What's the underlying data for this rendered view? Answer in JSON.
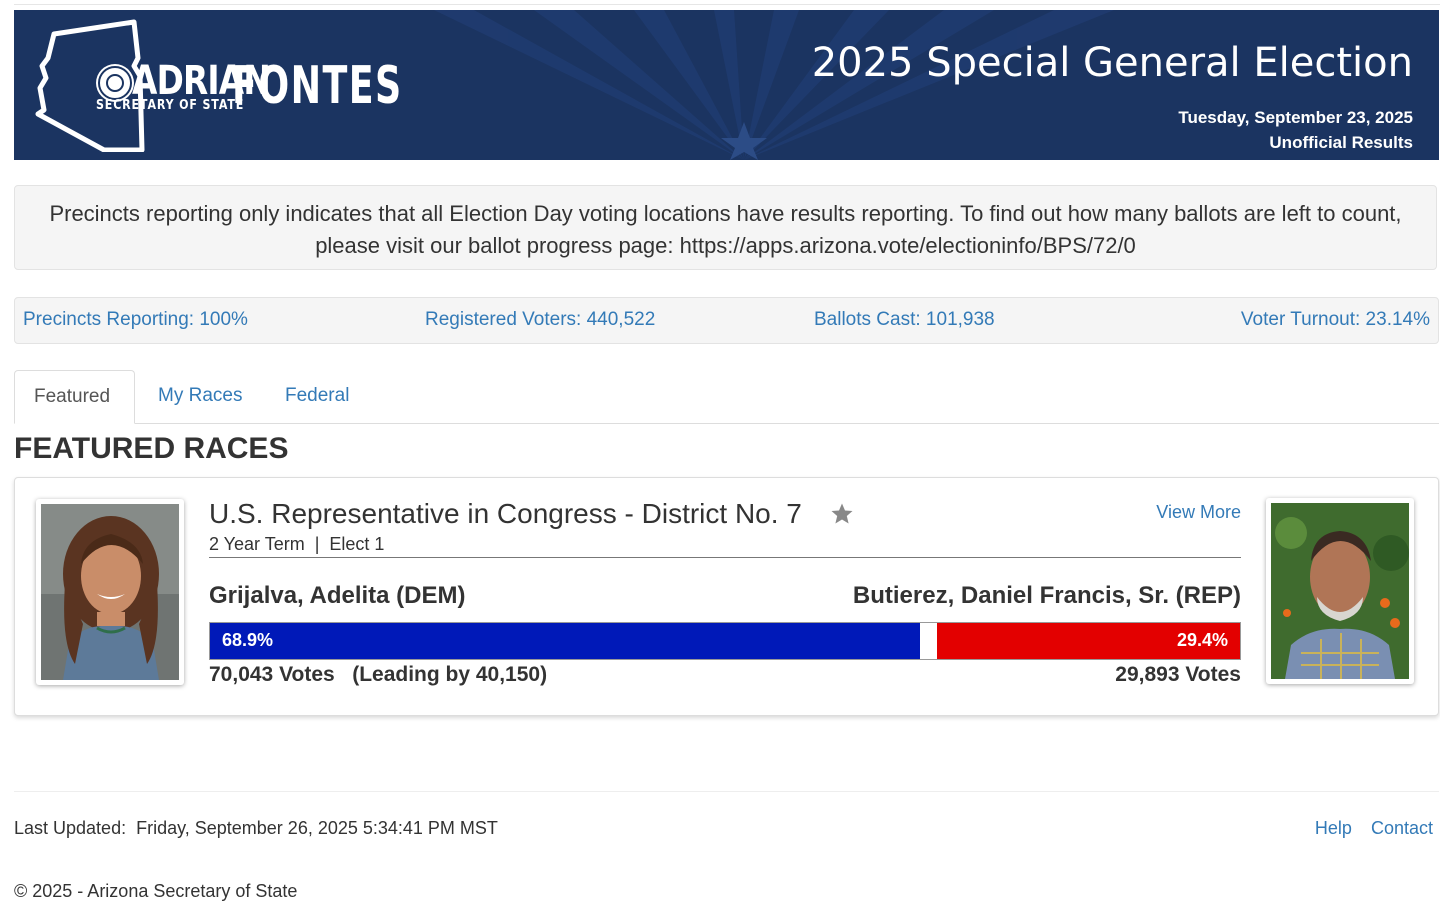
{
  "banner": {
    "logo_first": "ADRIAN",
    "logo_last": "FONTES",
    "logo_sub": "SECRETARY OF STATE",
    "title": "2025 Special General Election",
    "date": "Tuesday, September 23, 2025",
    "status": "Unofficial Results",
    "colors": {
      "background": "#1b3461",
      "text": "#ffffff"
    }
  },
  "notice": {
    "text": "Precincts reporting only indicates that all Election Day voting locations have results reporting. To find out how many ballots are left to count, please visit our ballot progress page: https://apps.arizona.vote/electioninfo/BPS/72/0"
  },
  "stats": {
    "precincts": "Precincts Reporting: 100%",
    "registered": "Registered Voters: 440,522",
    "ballots": "Ballots Cast: 101,938",
    "turnout": "Voter Turnout: 23.14%"
  },
  "tabs": [
    {
      "label": "Featured",
      "active": true
    },
    {
      "label": "My Races",
      "active": false
    },
    {
      "label": "Federal",
      "active": false
    }
  ],
  "section_title": "FEATURED RACES",
  "race": {
    "name": "U.S. Representative in Congress - District No. 7",
    "meta": "2 Year Term  |  Elect 1",
    "view_more": "View More",
    "dem": {
      "name": "Grijalva, Adelita (DEM)",
      "pct_label": "68.9%",
      "pct": 68.9,
      "votes": "70,043 Votes   (Leading by 40,150)",
      "color": "#0019b8"
    },
    "rep": {
      "name": "Butierez, Daniel Francis, Sr. (REP)",
      "pct_label": "29.4%",
      "pct": 29.4,
      "votes": "29,893 Votes",
      "color": "#e30000"
    }
  },
  "footer": {
    "last_updated": "Last Updated:  Friday, September 26, 2025 5:34:41 PM MST",
    "help": "Help",
    "contact": "Contact",
    "copyright": "© 2025 - Arizona Secretary of State"
  }
}
